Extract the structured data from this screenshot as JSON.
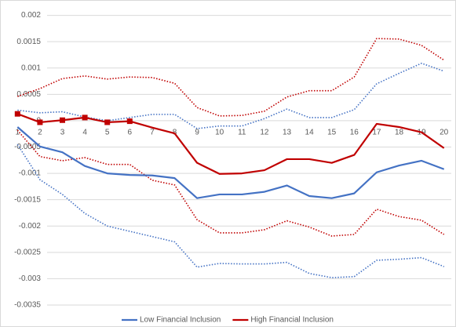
{
  "chart_data": {
    "type": "line",
    "categories": [
      "1",
      "2",
      "3",
      "4",
      "5",
      "6",
      "7",
      "8",
      "9",
      "10",
      "11",
      "12",
      "13",
      "14",
      "15",
      "16",
      "17",
      "18",
      "19",
      "20"
    ],
    "ylim": [
      -0.0035,
      0.002
    ],
    "yticks": [
      -0.0035,
      -0.003,
      -0.0025,
      -0.002,
      -0.0015,
      -0.001,
      -0.0005,
      0,
      0.0005,
      0.001,
      0.0015,
      0.002
    ],
    "grid": true,
    "legend": "bottom",
    "series": [
      {
        "color": "#4472c4",
        "style": "dotted",
        "values": [
          0.0002,
          0.00015,
          0.00017,
          7e-05,
          0,
          6e-05,
          0.00012,
          0.00012,
          -0.00015,
          -0.0001,
          -0.0001,
          4e-05,
          0.00022,
          6e-05,
          6e-05,
          0.00021,
          0.0007,
          0.0009,
          0.00109,
          0.00094
        ]
      },
      {
        "color": "#4472c4",
        "style": "dotted",
        "values": [
          -0.00045,
          -0.00112,
          -0.0014,
          -0.00176,
          -0.002,
          -0.0021,
          -0.0022,
          -0.0023,
          -0.00278,
          -0.00271,
          -0.00272,
          -0.00272,
          -0.00269,
          -0.0029,
          -0.00298,
          -0.00296,
          -0.00265,
          -0.00263,
          -0.0026,
          -0.00277
        ]
      },
      {
        "color": "#c00000",
        "style": "dotted",
        "values": [
          0.00046,
          0.00061,
          0.0008,
          0.00085,
          0.00079,
          0.00083,
          0.00082,
          0.00071,
          0.00025,
          9e-05,
          0.0001,
          0.00018,
          0.00045,
          0.00057,
          0.00057,
          0.00083,
          0.00156,
          0.00155,
          0.00143,
          0.00115
        ]
      },
      {
        "color": "#c00000",
        "style": "dotted",
        "values": [
          -0.00018,
          -0.00068,
          -0.00076,
          -0.0007,
          -0.00083,
          -0.00083,
          -0.00113,
          -0.00122,
          -0.00188,
          -0.00213,
          -0.00213,
          -0.00207,
          -0.0019,
          -0.00202,
          -0.00219,
          -0.00216,
          -0.00168,
          -0.00182,
          -0.00189,
          -0.00216
        ]
      },
      {
        "name": "Low Financial Inclusion",
        "color": "#4472c4",
        "style": "solid",
        "values": [
          -0.00012,
          -0.00049,
          -0.0006,
          -0.00086,
          -0.001,
          -0.00103,
          -0.00104,
          -0.00109,
          -0.00147,
          -0.0014,
          -0.0014,
          -0.00135,
          -0.00123,
          -0.00143,
          -0.00147,
          -0.00138,
          -0.00098,
          -0.00085,
          -0.00076,
          -0.00092
        ]
      },
      {
        "name": "High Financial Inclusion",
        "color": "#c00000",
        "style": "solid",
        "markers": [
          0,
          1,
          2,
          3,
          4,
          5
        ],
        "values": [
          0.00013,
          -3e-05,
          1e-05,
          6e-05,
          -3e-05,
          -1e-05,
          -0.00013,
          -0.00024,
          -0.0008,
          -0.00101,
          -0.001,
          -0.00094,
          -0.00073,
          -0.00073,
          -0.0008,
          -0.00065,
          -6e-05,
          -0.00012,
          -0.00022,
          -0.00052
        ]
      }
    ]
  }
}
